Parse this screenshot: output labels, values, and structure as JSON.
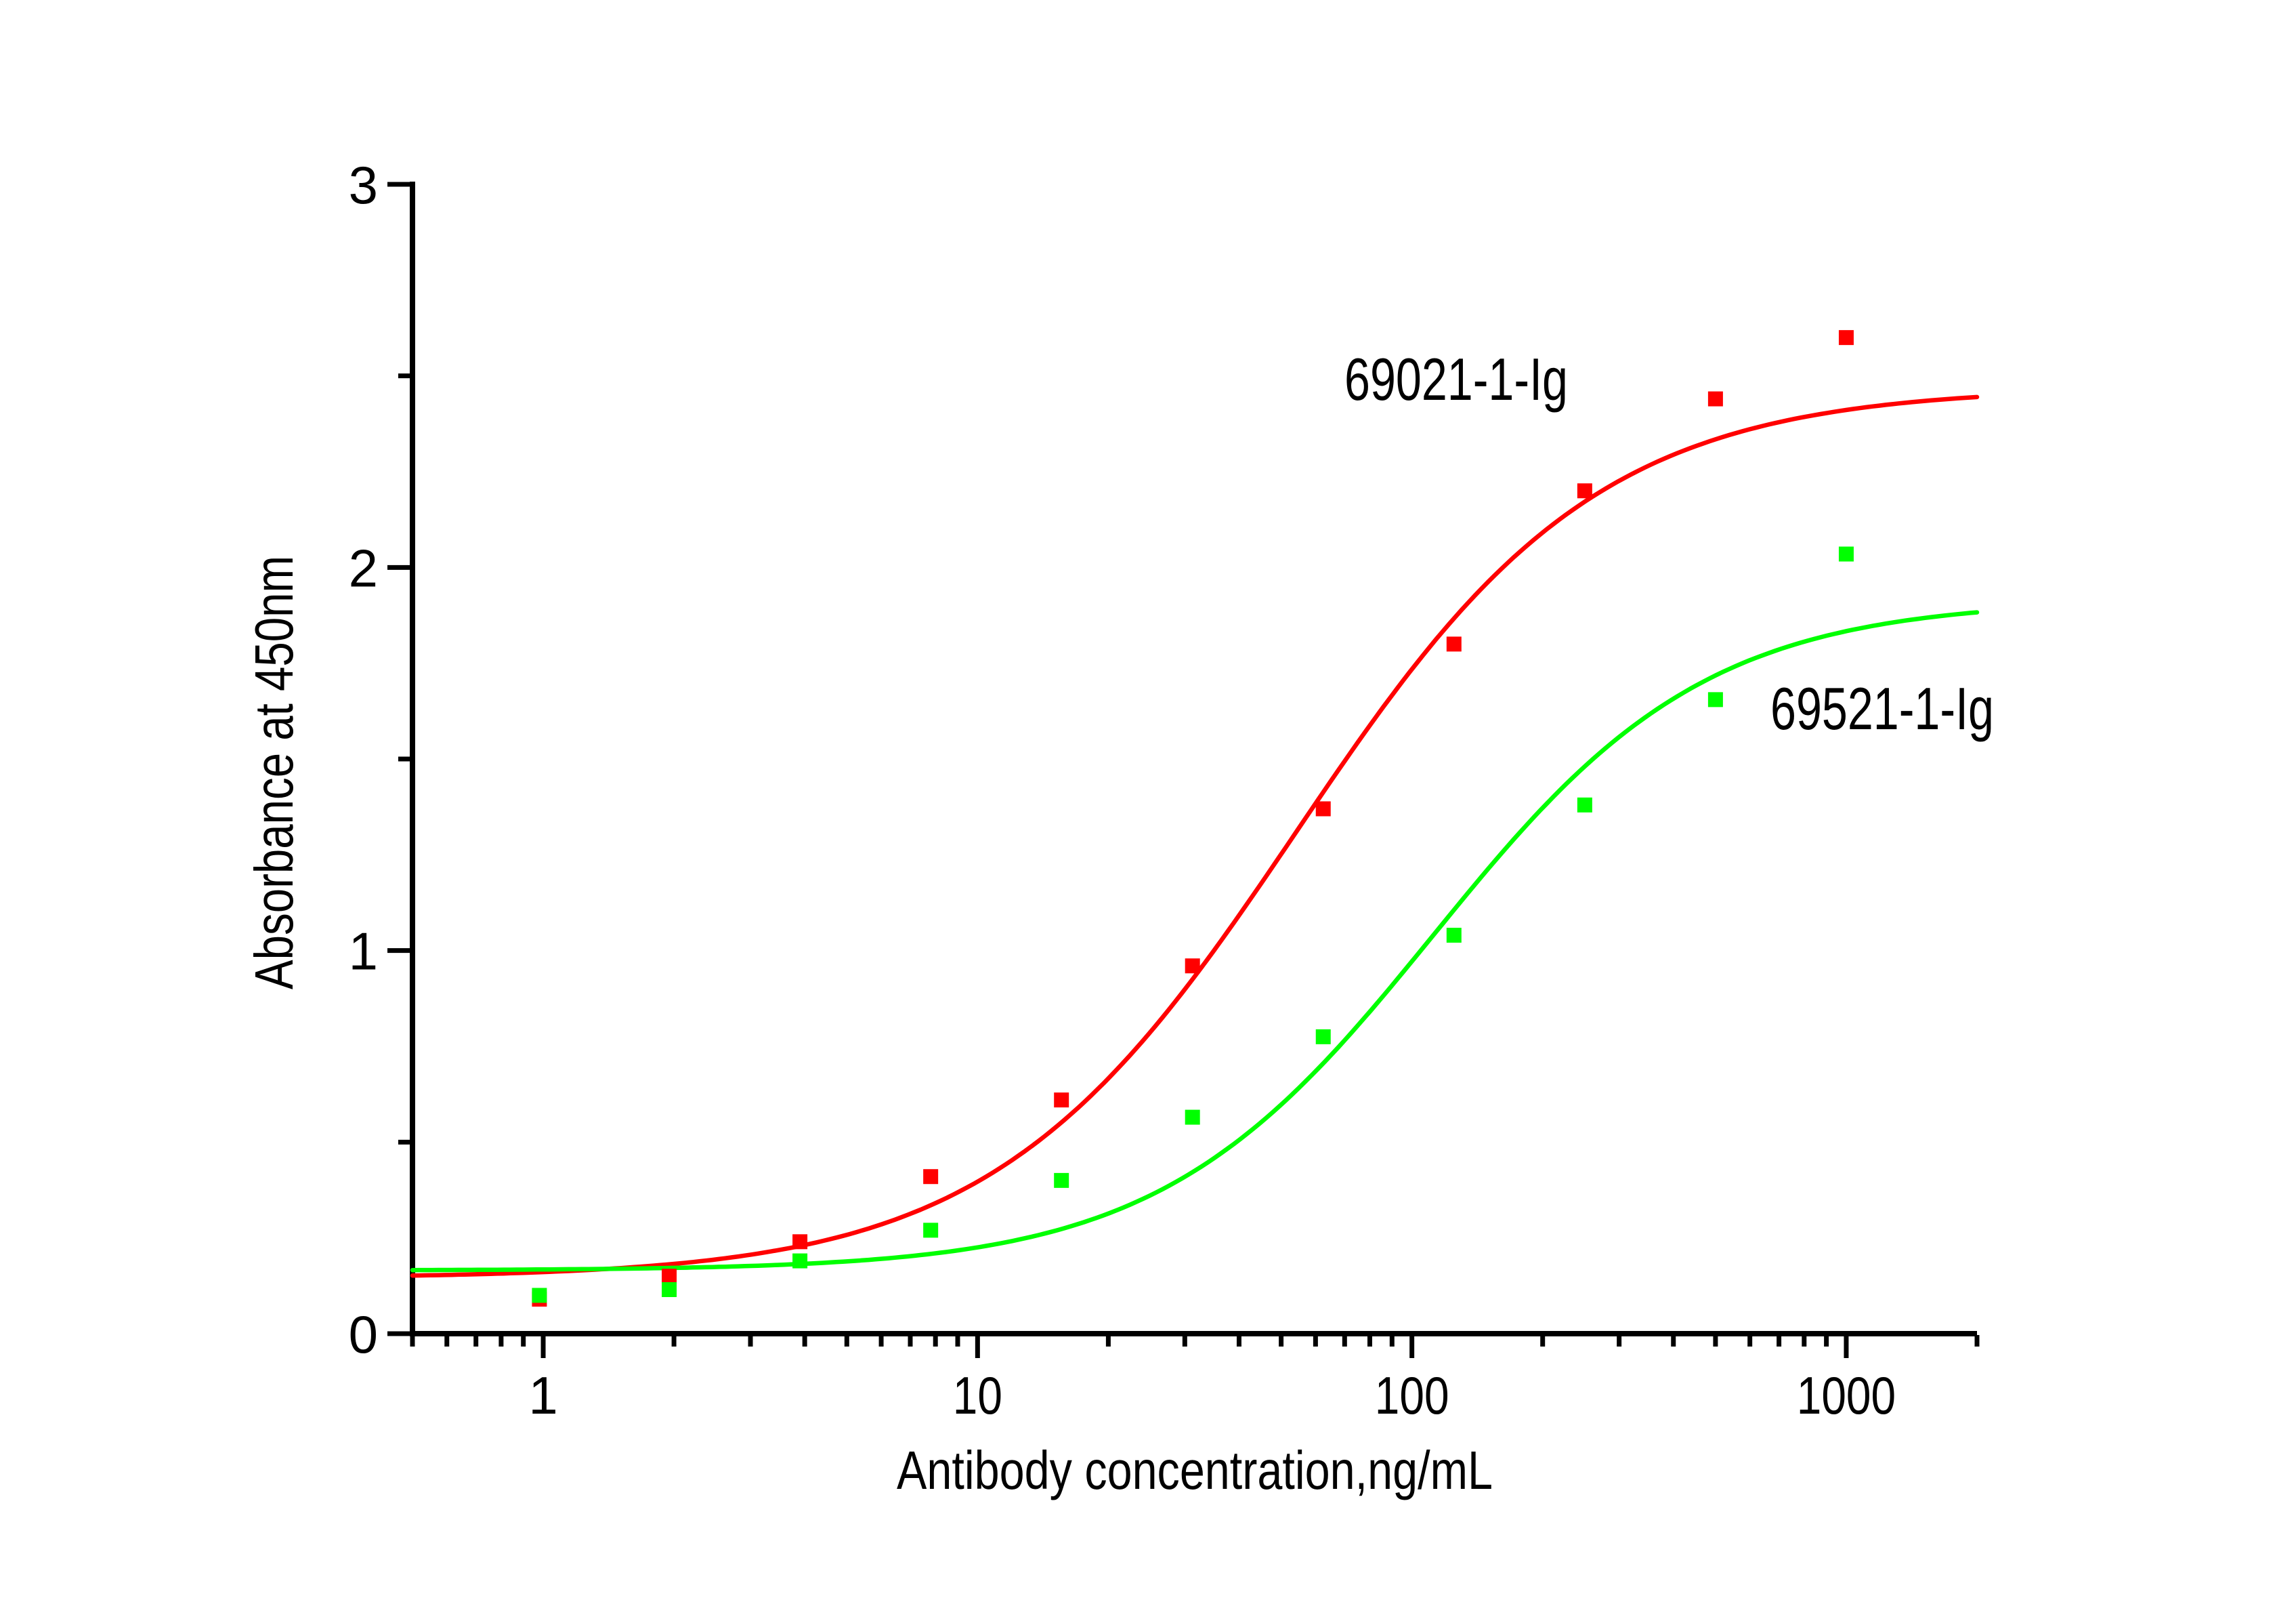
{
  "chart_data": {
    "type": "scatter",
    "title": "",
    "xlabel": "Antibody concentration,ng/mL",
    "ylabel": "Absorbance at 450nm",
    "x_scale": "log",
    "xlim": [
      0.5,
      2000
    ],
    "ylim": [
      0,
      3
    ],
    "x_ticks_major": [
      1,
      10,
      100,
      1000
    ],
    "x_ticks_minor": [
      0.5,
      0.6,
      0.7,
      0.8,
      0.9,
      2,
      3,
      4,
      5,
      6,
      7,
      8,
      9,
      20,
      30,
      40,
      50,
      60,
      70,
      80,
      90,
      200,
      300,
      400,
      500,
      600,
      700,
      800,
      900,
      2000
    ],
    "y_ticks_major": [
      0,
      1,
      2,
      3
    ],
    "y_ticks_minor": [
      0.5,
      1.5,
      2.5
    ],
    "grid": "off",
    "background": "#FFFFFF",
    "axis_color": "#000000",
    "marker": "square",
    "legend_position": "inline-annotations",
    "series": [
      {
        "name": "69021-1-Ig",
        "color": "#FF0000",
        "x": [
          0.98,
          1.95,
          3.9,
          7.8,
          15.6,
          31.25,
          62.5,
          125,
          250,
          500,
          1000
        ],
        "y": [
          0.09,
          0.15,
          0.24,
          0.41,
          0.61,
          0.96,
          1.37,
          1.8,
          2.2,
          2.44,
          2.6
        ],
        "fit_4pl": {
          "bottom": 0.145,
          "top": 2.47,
          "ec50": 54,
          "hill": 1.25
        }
      },
      {
        "name": "69521-1-Ig",
        "color": "#00FF00",
        "x": [
          0.98,
          1.95,
          3.9,
          7.8,
          15.6,
          31.25,
          62.5,
          125,
          250,
          500,
          1000
        ],
        "y": [
          0.1,
          0.115,
          0.19,
          0.27,
          0.4,
          0.565,
          0.775,
          1.04,
          1.38,
          1.655,
          2.035
        ],
        "fit_4pl": {
          "bottom": 0.165,
          "top": 1.915,
          "ec50": 112,
          "hill": 1.38
        }
      }
    ]
  }
}
